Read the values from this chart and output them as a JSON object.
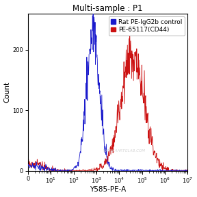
{
  "title": "Multi-sample : P1",
  "xlabel": "Y585-PE-A",
  "ylabel": "Count",
  "ylim": [
    0,
    260
  ],
  "yticks": [
    0,
    100,
    200
  ],
  "blue_label": "Rat PE-IgG2b control",
  "red_label": "PE-65117(CD44)",
  "blue_color": "#1a1acc",
  "red_color": "#cc1111",
  "watermark": "WWW.AARTGLAB.COM",
  "bg_color": "#ffffff",
  "plot_bg": "#ffffff",
  "title_fontsize": 8.5,
  "axis_fontsize": 7.5,
  "tick_fontsize": 6,
  "legend_fontsize": 6.5,
  "blue_peak_log": 2.85,
  "blue_peak_count": 245,
  "blue_sigma_log": 0.28,
  "red_peak_log": 4.58,
  "red_peak_count": 215,
  "red_sigma_log": 0.52,
  "noise_seed_blue": 42,
  "noise_seed_red": 7
}
